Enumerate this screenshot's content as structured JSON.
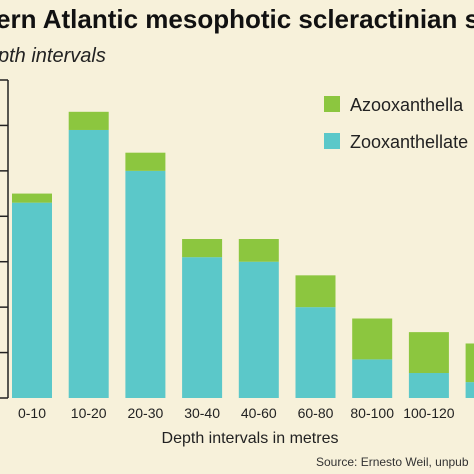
{
  "chart_data": {
    "type": "bar",
    "stacked": true,
    "title": "ern Atlantic mesophotic scleractinian sp",
    "subtitle": "pth intervals",
    "xlabel": "Depth intervals in metres",
    "ylabel": "",
    "categories": [
      "0-10",
      "10-20",
      "20-30",
      "30-40",
      "40-60",
      "60-80",
      "80-100",
      "100-120",
      "120"
    ],
    "series": [
      {
        "name": "Zooxanthellate",
        "color": "#5bc8c9",
        "values": [
          43,
          59,
          50,
          31,
          30,
          20,
          8.5,
          5.5,
          3.5
        ]
      },
      {
        "name": "Azooxanthella",
        "color": "#8cc63f",
        "values": [
          2,
          4,
          4,
          4,
          5,
          7,
          9,
          9,
          8.5
        ]
      }
    ],
    "ylim": [
      0,
      70
    ],
    "grid": false,
    "legend_position": "top-right",
    "source": "Source:  Ernesto Weil, unpub"
  }
}
